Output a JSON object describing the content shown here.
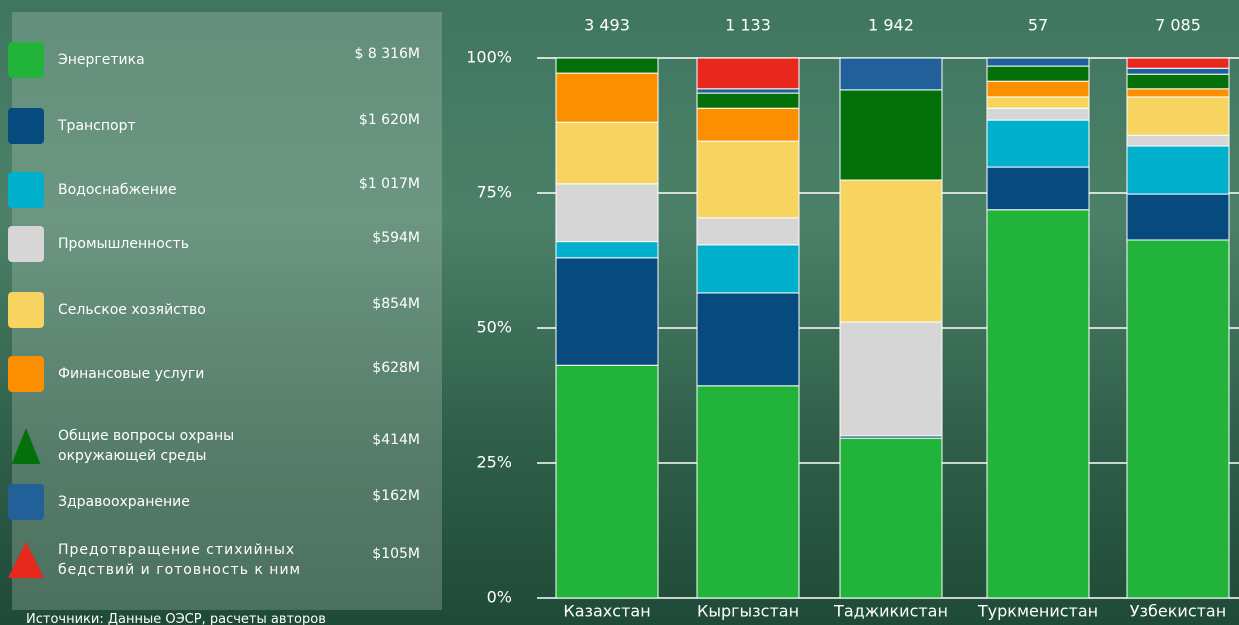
{
  "chart_data": {
    "type": "stacked_bar_100",
    "categories": [
      "Казахстан",
      "Кыргызстан",
      "Таджикистан",
      "Туркменистан",
      "Узбекистан"
    ],
    "totals": [
      {
        "value": 3493,
        "label": "3 493"
      },
      {
        "value": 1133,
        "label": "1 133"
      },
      {
        "value": 1942,
        "label": "1 942"
      },
      {
        "value": 57,
        "label": "57"
      },
      {
        "value": 7085,
        "label": "7 085"
      }
    ],
    "series": [
      {
        "name": "Энергетика",
        "amount": "$ 8 316M",
        "color": "#22b33a",
        "values": [
          43.1,
          39.3,
          29.6,
          71.9,
          66.3
        ]
      },
      {
        "name": "Транспорт",
        "amount": "$1 620M",
        "color": "#064a7e",
        "values": [
          19.9,
          17.2,
          0.4,
          7.9,
          8.5
        ]
      },
      {
        "name": "Водоснабжение",
        "amount": "$1 017M",
        "color": "#00b0cc",
        "values": [
          3.0,
          8.9,
          0,
          8.7,
          8.9
        ]
      },
      {
        "name": "Промышленность",
        "amount": "$594M",
        "color": "#d6d6d6",
        "values": [
          10.7,
          5.0,
          21.1,
          2.2,
          2.0
        ]
      },
      {
        "name": "Сельское хозяйство",
        "amount": "$854M",
        "color": "#f7d360",
        "values": [
          11.4,
          14.2,
          26.3,
          2.1,
          7.1
        ]
      },
      {
        "name": "Финансовые услуги",
        "amount": "$628M",
        "color": "#fb8f00",
        "values": [
          9.1,
          6.1,
          0,
          2.9,
          1.5
        ]
      },
      {
        "name": "Общие вопросы охраны окружающей среды",
        "amount": "$414M",
        "color": "#04700a",
        "values": [
          2.8,
          2.8,
          16.7,
          2.8,
          2.7
        ]
      },
      {
        "name": "Здравоохранение",
        "amount": "$162M",
        "color": "#22609a",
        "values": [
          0,
          0.8,
          5.9,
          1.5,
          1.1
        ]
      },
      {
        "name": "Предотвращение стихийных бедствий и готовность к ним",
        "amount": "$105M",
        "color": "#e8281c",
        "values": [
          0,
          5.7,
          0,
          0,
          1.9
        ]
      }
    ],
    "ylim": [
      0,
      100
    ],
    "yticks": [
      {
        "value": 0,
        "label": "0%"
      },
      {
        "value": 25,
        "label": "25%"
      },
      {
        "value": 50,
        "label": "50%"
      },
      {
        "value": 75,
        "label": "75%"
      },
      {
        "value": 100,
        "label": "100%"
      }
    ],
    "grid": true,
    "source": "Источники: Данные ОЭСР, расчеты авторов"
  }
}
